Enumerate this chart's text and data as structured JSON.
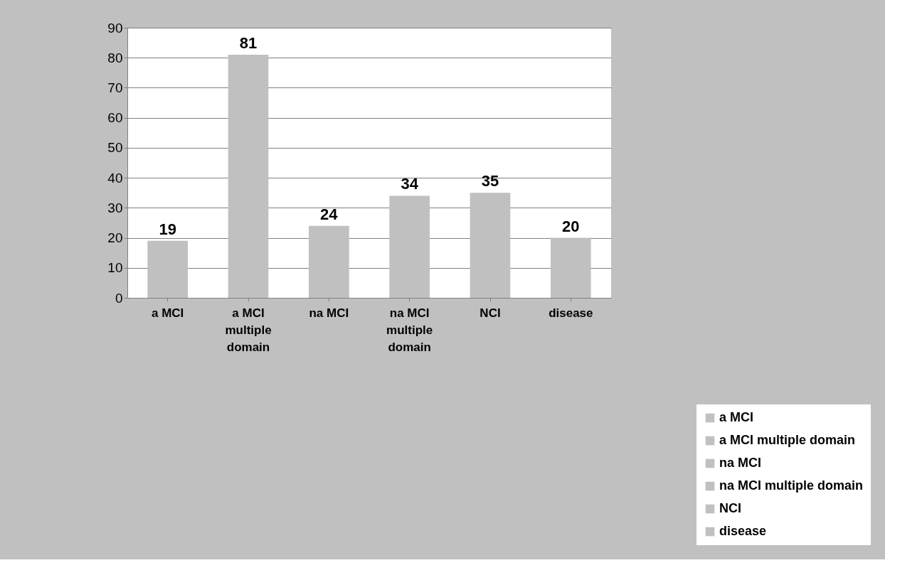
{
  "chart_data": {
    "type": "bar",
    "categories": [
      "a MCI",
      "a MCI multiple domain",
      "na MCI",
      "na MCI multiple domain",
      "NCI",
      "disease"
    ],
    "series": [
      {
        "name": "a MCI",
        "color": "#c0c0c0",
        "values": [
          19,
          null,
          null,
          null,
          null,
          null
        ]
      },
      {
        "name": "a MCI multiple domain",
        "color": "#c0c0c0",
        "values": [
          null,
          81,
          null,
          null,
          null,
          null
        ]
      },
      {
        "name": "na MCI",
        "color": "#c0c0c0",
        "values": [
          null,
          null,
          24,
          null,
          null,
          null
        ]
      },
      {
        "name": "na MCI multiple domain",
        "color": "#c0c0c0",
        "values": [
          null,
          null,
          null,
          34,
          null,
          null
        ]
      },
      {
        "name": "NCI",
        "color": "#c0c0c0",
        "values": [
          null,
          null,
          null,
          null,
          35,
          null
        ]
      },
      {
        "name": "disease",
        "color": "#c0c0c0",
        "values": [
          null,
          null,
          null,
          null,
          null,
          20
        ]
      }
    ],
    "ylim": [
      0,
      90
    ],
    "yticks": [
      0,
      10,
      20,
      30,
      40,
      50,
      60,
      70,
      80,
      90
    ],
    "grid": "y",
    "data_labels": true,
    "legend": "bottom right"
  }
}
